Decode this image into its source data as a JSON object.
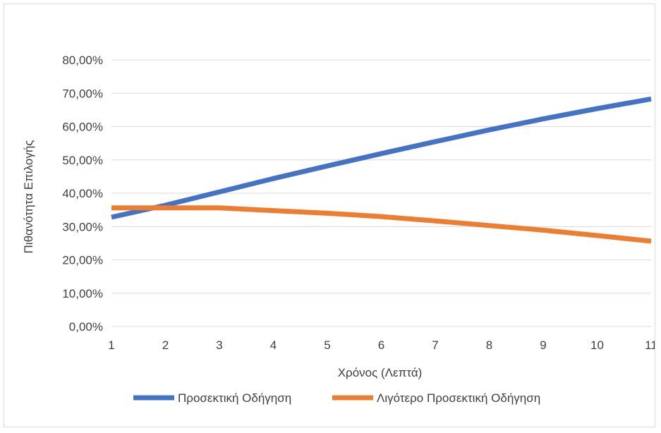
{
  "chart_data": {
    "type": "line",
    "title": "",
    "xlabel": "Χρόνος (Λεπτά)",
    "ylabel": "Πιθανότητα Επιλογής",
    "x": [
      1,
      2,
      3,
      4,
      5,
      6,
      7,
      8,
      9,
      10,
      11
    ],
    "ylim": [
      0,
      80
    ],
    "yticks": [
      0,
      10,
      20,
      30,
      40,
      50,
      60,
      70,
      80
    ],
    "ytick_labels": [
      "0,00%",
      "10,00%",
      "20,00%",
      "30,00%",
      "40,00%",
      "50,00%",
      "60,00%",
      "70,00%",
      "80,00%"
    ],
    "grid": true,
    "legend_position": "bottom",
    "series": [
      {
        "name": "Προσεκτική Οδήγηση",
        "color": "#4472C4",
        "values": [
          32.8,
          36.4,
          40.4,
          44.4,
          48.2,
          51.9,
          55.5,
          59.0,
          62.3,
          65.4,
          68.3
        ]
      },
      {
        "name": "Λιγότερο Προσεκτική Οδήγηση",
        "color": "#ED7D31",
        "values": [
          35.6,
          35.6,
          35.6,
          34.8,
          34.0,
          33.0,
          31.7,
          30.3,
          28.9,
          27.3,
          25.6
        ]
      }
    ]
  }
}
